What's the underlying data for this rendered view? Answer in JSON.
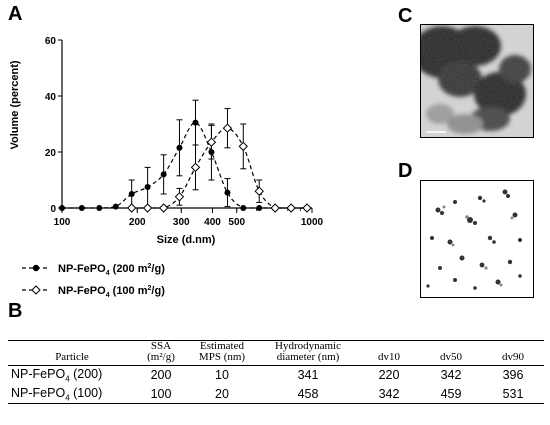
{
  "panels": {
    "a": "A",
    "b": "B",
    "c": "C",
    "d": "D"
  },
  "chart_data": {
    "type": "scatter",
    "xscale": "log",
    "xlabel": "Size (d.nm)",
    "ylabel": "Volume (percent)",
    "xlim": [
      100,
      1000
    ],
    "ylim": [
      0,
      60
    ],
    "x_ticks": [
      100,
      200,
      300,
      400,
      500,
      1000
    ],
    "y_ticks": [
      0,
      20,
      40,
      60
    ],
    "series": [
      {
        "name": "NP-FePO4 (200 m2/g)",
        "marker": "filled-circle",
        "x": [
          100,
          120,
          141,
          164,
          190,
          220,
          255,
          295,
          342,
          396,
          459,
          531,
          615,
          712,
          825,
          955
        ],
        "y": [
          0,
          0,
          0,
          0.5,
          5,
          7.5,
          12,
          21.5,
          30.5,
          20,
          5.5,
          0,
          0,
          0,
          0,
          0
        ],
        "err": [
          0,
          0,
          0,
          0,
          5,
          7,
          7,
          10,
          8,
          10,
          5,
          0,
          0,
          0,
          0,
          0
        ]
      },
      {
        "name": "NP-FePO4 (100 m2/g)",
        "marker": "open-diamond",
        "x": [
          190,
          220,
          255,
          295,
          342,
          396,
          459,
          531,
          615,
          712,
          825,
          955
        ],
        "y": [
          0,
          0,
          0,
          4,
          14.5,
          23.5,
          28.5,
          22,
          6,
          0,
          0,
          0
        ],
        "err": [
          0,
          0,
          0,
          3,
          8,
          6,
          7,
          8,
          4,
          0,
          0,
          0
        ]
      }
    ]
  },
  "legend": {
    "item1": {
      "prefix": "NP-FePO",
      "sub": "4",
      "rest": " (200 m",
      "sup": "2",
      "tail": "/g)"
    },
    "item2": {
      "prefix": "NP-FePO",
      "sub": "4",
      "rest": " (100 m",
      "sup": "2",
      "tail": "/g)"
    }
  },
  "table": {
    "headers": {
      "particle": "Particle",
      "ssa_1": "SSA",
      "ssa_2": "(m²/g)",
      "mps_1": "Estimated",
      "mps_2": "MPS (nm)",
      "hyd_1": "Hydrodynamic",
      "hyd_2": "diameter (nm)",
      "dv10": "dv10",
      "dv50": "dv50",
      "dv90": "dv90"
    },
    "rows": [
      {
        "particle_prefix": "NP-FePO",
        "particle_sub": "4",
        "particle_suffix": " (200)",
        "ssa": "200",
        "mps": "10",
        "hyd": "341",
        "dv10": "220",
        "dv50": "342",
        "dv90": "396"
      },
      {
        "particle_prefix": "NP-FePO",
        "particle_sub": "4",
        "particle_suffix": " (100)",
        "ssa": "100",
        "mps": "20",
        "hyd": "458",
        "dv10": "342",
        "dv50": "459",
        "dv90": "531"
      }
    ]
  }
}
